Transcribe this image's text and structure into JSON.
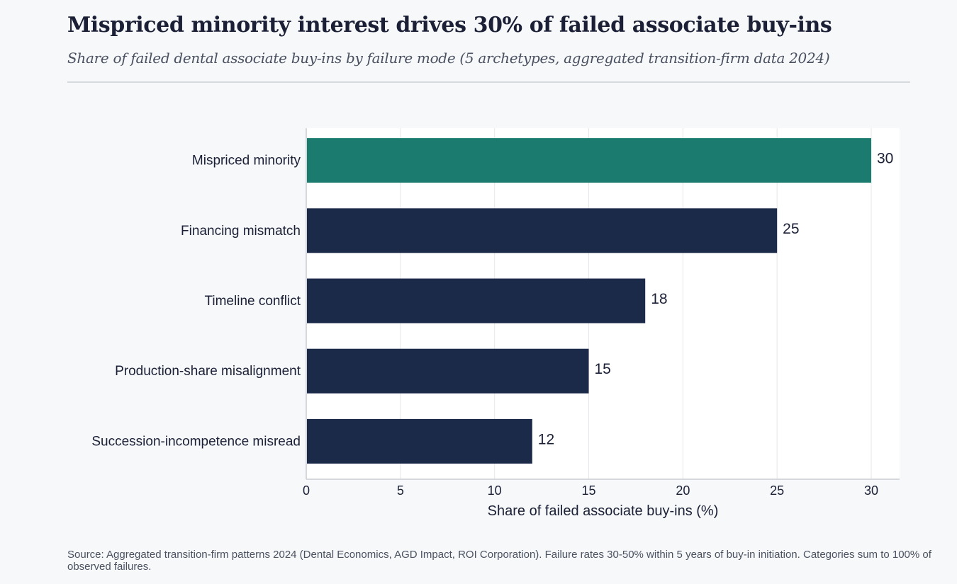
{
  "header": {
    "title": "Mispriced minority interest drives 30% of failed associate buy-ins",
    "subtitle": "Share of failed dental associate buy-ins by failure mode (5 archetypes, aggregated transition-firm data 2024)"
  },
  "chart_data": {
    "type": "bar",
    "orientation": "horizontal",
    "categories": [
      "Mispriced minority",
      "Financing mismatch",
      "Timeline conflict",
      "Production-share misalignment",
      "Succession-incompetence misread"
    ],
    "values": [
      30,
      25,
      18,
      15,
      12
    ],
    "data_labels": [
      "30",
      "25",
      "18",
      "15",
      "12"
    ],
    "xlabel": "Share of failed associate buy-ins (%)",
    "ylabel": "",
    "xlim": [
      0,
      31.5
    ],
    "x_ticks": [
      0,
      5,
      10,
      15,
      20,
      25,
      30
    ],
    "x_tick_labels": [
      "0",
      "5",
      "10",
      "15",
      "20",
      "25",
      "30"
    ],
    "grid": "vertical",
    "highlight_index": 0,
    "colors": {
      "highlight": "#1b7b6f",
      "default": "#1c2a4a",
      "grid": "#e6e7ea",
      "axis": "#c8ccd2",
      "plot_bg": "#ffffff"
    }
  },
  "footer": {
    "source": "Source: Aggregated transition-firm patterns 2024 (Dental Economics, AGD Impact, ROI Corporation). Failure rates 30-50% within 5 years of buy-in initiation. Categories sum to 100% of observed failures."
  }
}
